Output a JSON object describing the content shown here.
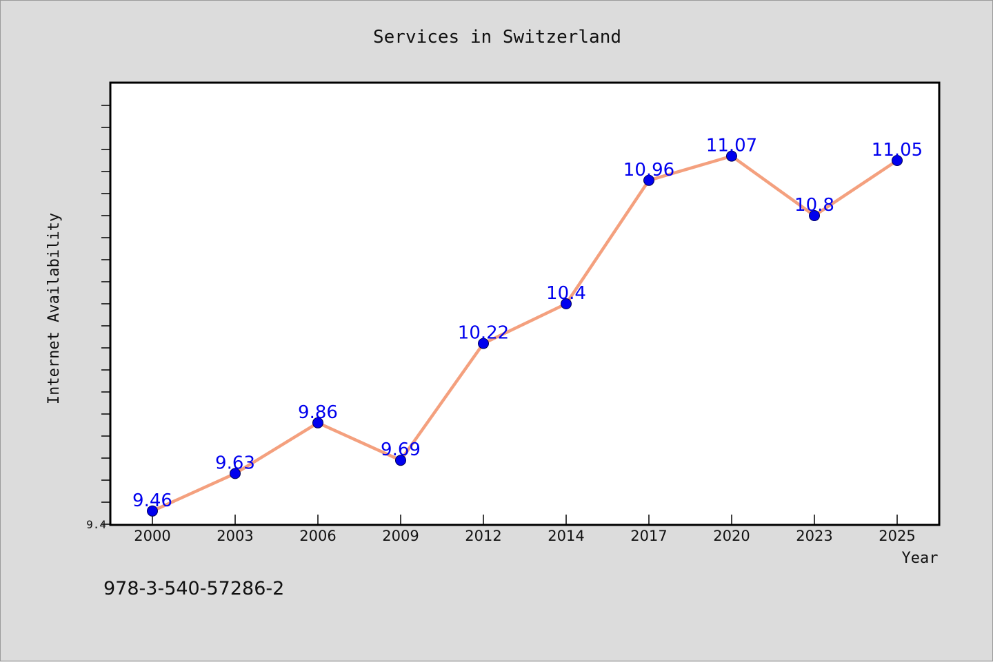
{
  "chart_data": {
    "type": "line",
    "title": "Services in Switzerland",
    "xlabel": "Year",
    "ylabel": "Internet Availability",
    "categories": [
      "2000",
      "2003",
      "2006",
      "2009",
      "2012",
      "2014",
      "2017",
      "2020",
      "2023",
      "2025"
    ],
    "series": [
      {
        "values": [
          9.46,
          9.63,
          9.86,
          9.69,
          10.22,
          10.4,
          10.96,
          11.07,
          10.8,
          11.05
        ]
      }
    ],
    "data_labels": [
      "9.46",
      "9.63",
      "9.86",
      "9.69",
      "10.22",
      "10.4",
      "10.96",
      "11.07",
      "10.8",
      "11.05"
    ],
    "ylim": [
      9.4,
      11.4
    ],
    "ytick_labels": [
      "9.4"
    ],
    "ytick_step": 0.1,
    "grid": false,
    "colors": {
      "line": "#f4a07e",
      "marker": "#0000ee",
      "label": "#0000ee",
      "background": "#dcdcdc",
      "plot_area": "#ffffff"
    }
  },
  "footer": {
    "isbn": "978-3-540-57286-2"
  }
}
